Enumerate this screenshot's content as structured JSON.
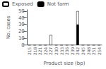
{
  "chart_data": {
    "type": "bar",
    "categories": [
      "215",
      "218",
      "221",
      "224",
      "227",
      "230",
      "233",
      "236",
      "239",
      "242",
      "245",
      "248",
      "251",
      "254"
    ],
    "series": [
      {
        "name": "Not farm",
        "color": "black",
        "values": [
          0,
          0,
          0,
          0,
          0,
          0,
          0,
          0,
          0,
          30,
          0,
          0,
          0,
          0
        ]
      },
      {
        "name": "Exposed",
        "color": "white",
        "values": [
          0,
          0,
          0,
          0,
          15,
          0,
          0,
          0,
          0,
          20,
          0,
          0,
          0,
          0
        ]
      }
    ],
    "stacked": true,
    "xlabel": "Product size (bp)",
    "ylabel": "No. cases",
    "ylim": [
      0,
      52
    ],
    "yticks": [
      0,
      10,
      20,
      30,
      40,
      50
    ],
    "legend": "upper left",
    "grid": false
  }
}
